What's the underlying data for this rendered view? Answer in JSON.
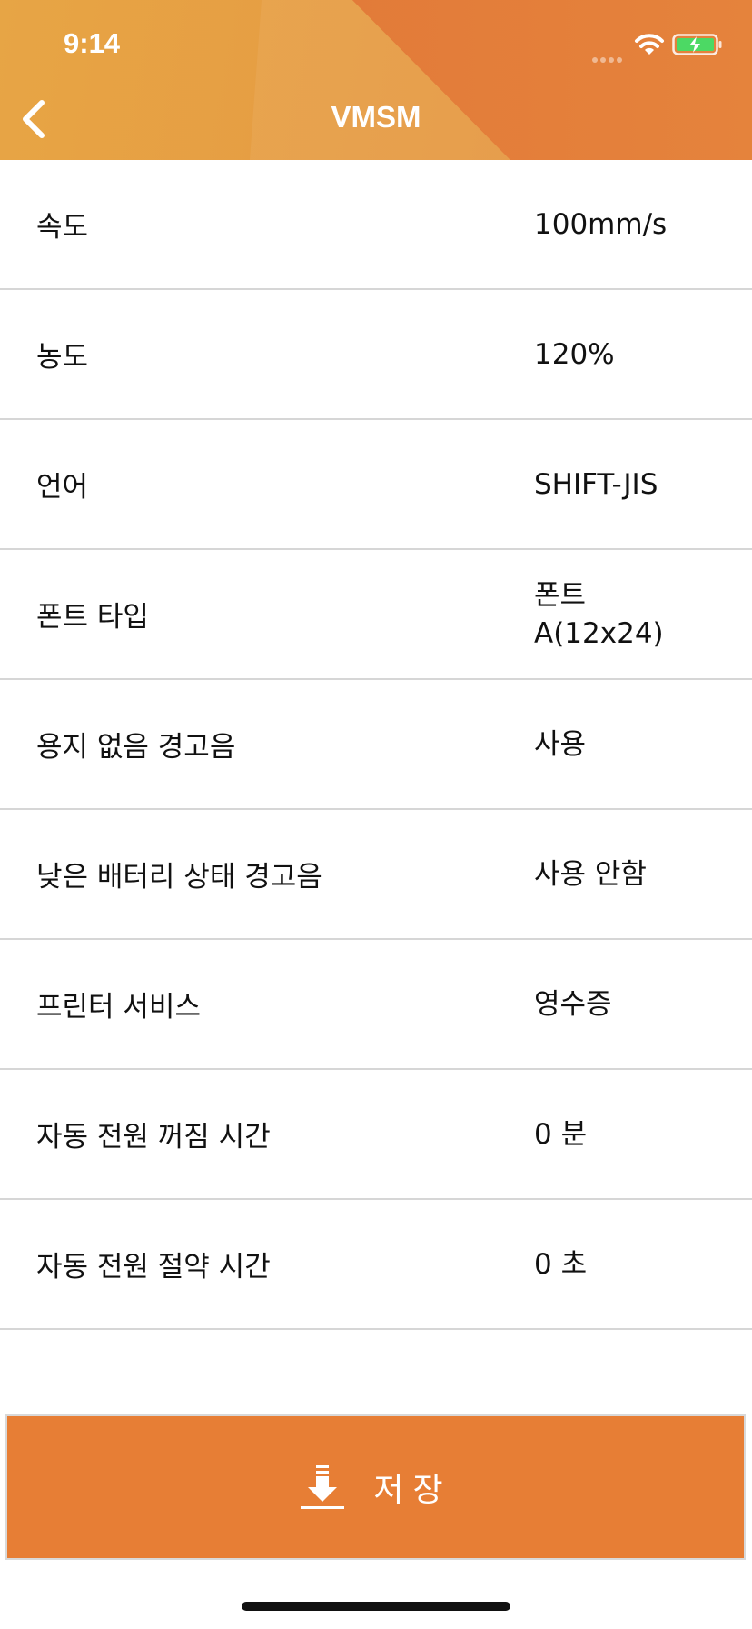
{
  "status_bar": {
    "time": "9:14"
  },
  "header": {
    "title": "VMSM",
    "back_icon": "chevron-left-icon"
  },
  "settings": [
    {
      "label": "속도",
      "value": "100mm/s"
    },
    {
      "label": "농도",
      "value": "120%"
    },
    {
      "label": "언어",
      "value": "SHIFT-JIS"
    },
    {
      "label": "폰트 타입",
      "value": "폰트 A(12x24)"
    },
    {
      "label": "용지 없음 경고음",
      "value": "사용"
    },
    {
      "label": "낮은 배터리 상태 경고음",
      "value": "사용 안함"
    },
    {
      "label": "프린터 서비스",
      "value": "영수증"
    },
    {
      "label": "자동 전원 꺼짐 시간",
      "value": "0 분"
    },
    {
      "label": "자동 전원 절약 시간",
      "value": "0 초"
    }
  ],
  "save_button": {
    "label": "저장",
    "icon": "download-icon"
  },
  "colors": {
    "accent": "#E77E35",
    "header_light": "#E7A545",
    "header_dark": "#E07436"
  }
}
